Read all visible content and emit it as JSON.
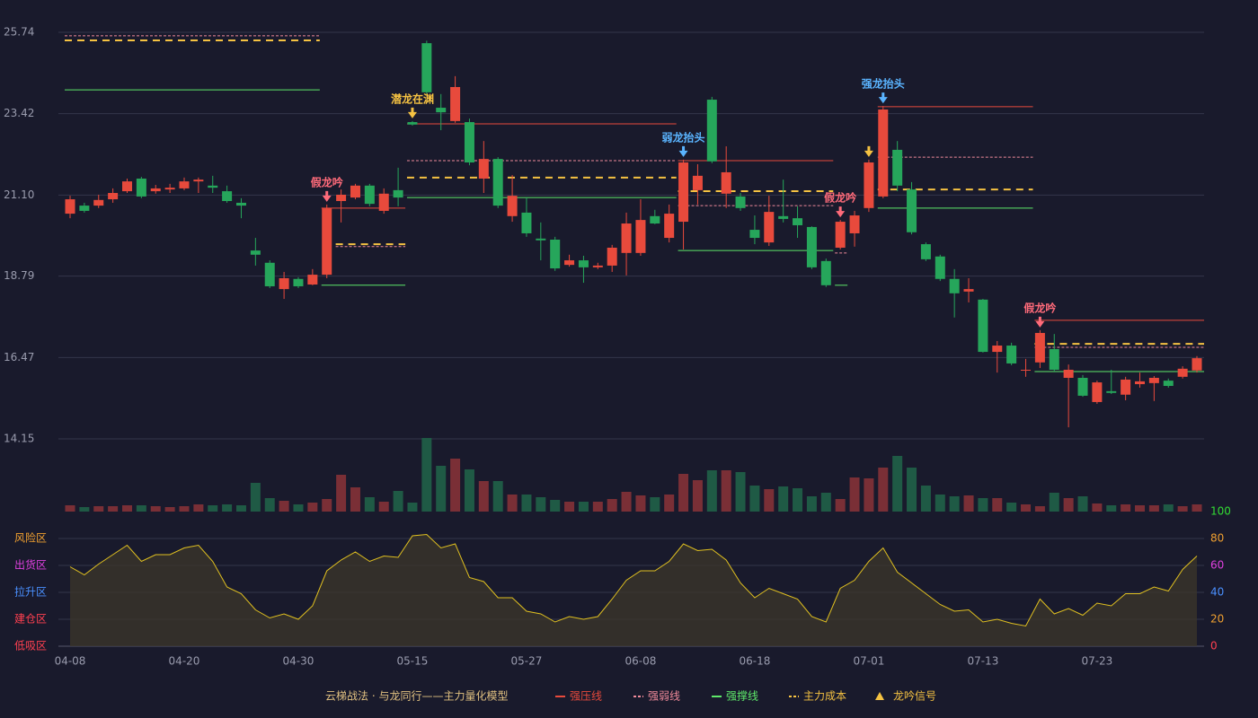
{
  "chart_data": {
    "type": "candlestick",
    "categories": [
      "04-08",
      null,
      null,
      null,
      null,
      null,
      null,
      null,
      "04-20",
      null,
      null,
      null,
      null,
      null,
      null,
      null,
      "04-30",
      null,
      null,
      null,
      null,
      null,
      null,
      null,
      "05-15",
      null,
      null,
      null,
      null,
      null,
      null,
      null,
      "05-27",
      null,
      null,
      null,
      null,
      null,
      null,
      null,
      "06-08",
      null,
      null,
      null,
      null,
      null,
      null,
      null,
      "06-18",
      null,
      null,
      null,
      null,
      null,
      null,
      null,
      "07-01",
      null,
      null,
      null,
      null,
      null,
      null,
      null,
      "07-13",
      null,
      null,
      null,
      null,
      null,
      null,
      null,
      "07-23",
      null,
      null,
      null,
      null,
      null,
      null,
      null
    ],
    "open": [
      20.57,
      20.8,
      20.8,
      20.98,
      21.21,
      21.57,
      21.21,
      21.26,
      21.29,
      21.49,
      21.37,
      21.21,
      20.88,
      19.52,
      19.17,
      18.42,
      18.71,
      18.55,
      18.83,
      20.93,
      21.03,
      21.37,
      20.65,
      21.24,
      23.18,
      25.43,
      23.59,
      23.21,
      23.18,
      21.57,
      22.13,
      20.5,
      20.6,
      19.86,
      19.83,
      19.11,
      19.24,
      19.04,
      19.09,
      19.45,
      19.45,
      20.5,
      19.88,
      20.34,
      21.24,
      23.82,
      21.14,
      21.06,
      20.11,
      19.75,
      20.5,
      20.44,
      20.19,
      19.22,
      19.6,
      20.01,
      20.73,
      21.06,
      22.39,
      21.26,
      19.7,
      19.35,
      18.71,
      18.35,
      18.12,
      16.63,
      16.81,
      16.1,
      16.33,
      16.71,
      15.89,
      15.89,
      15.2,
      15.51,
      15.41,
      15.71,
      15.74,
      15.81,
      15.92,
      16.1
    ],
    "high": [
      21.08,
      20.88,
      21.11,
      21.29,
      21.57,
      21.62,
      21.39,
      21.42,
      21.6,
      21.6,
      21.65,
      21.37,
      21.01,
      19.88,
      19.24,
      18.91,
      18.76,
      18.99,
      20.83,
      21.26,
      21.42,
      21.42,
      21.29,
      21.88,
      23.21,
      25.5,
      23.98,
      24.49,
      23.28,
      22.64,
      22.18,
      21.67,
      21.03,
      20.32,
      19.91,
      19.4,
      19.37,
      19.17,
      19.68,
      20.6,
      20.98,
      20.68,
      20.83,
      22.11,
      21.98,
      23.9,
      22.49,
      21.16,
      20.52,
      21.08,
      21.54,
      20.78,
      20.21,
      19.29,
      20.39,
      20.65,
      22.11,
      23.64,
      22.64,
      21.47,
      19.75,
      19.4,
      18.99,
      18.73,
      18.14,
      16.94,
      16.89,
      16.43,
      17.25,
      17.14,
      16.27,
      15.97,
      15.81,
      16.12,
      15.92,
      16.04,
      15.94,
      15.87,
      16.22,
      16.51
    ],
    "low": [
      20.44,
      20.6,
      20.73,
      20.88,
      21.16,
      21.01,
      21.14,
      21.16,
      21.24,
      21.16,
      21.16,
      20.88,
      20.44,
      19.09,
      18.45,
      18.14,
      18.45,
      18.53,
      18.73,
      20.32,
      20.98,
      20.78,
      20.57,
      20.78,
      23.08,
      23.98,
      22.95,
      23.16,
      21.95,
      21.16,
      20.73,
      20.34,
      19.91,
      19.24,
      18.94,
      19.06,
      18.6,
      18.99,
      18.91,
      18.81,
      19.37,
      20.27,
      19.75,
      19.55,
      20.83,
      22.01,
      20.73,
      20.65,
      19.7,
      19.65,
      20.32,
      19.88,
      18.99,
      18.48,
      19.55,
      19.63,
      20.62,
      21.01,
      21.21,
      19.98,
      19.22,
      18.65,
      17.61,
      18.04,
      16.61,
      16.04,
      16.25,
      15.92,
      16.17,
      16.07,
      14.48,
      15.35,
      15.15,
      15.43,
      15.25,
      15.61,
      15.23,
      15.61,
      15.87,
      16.04
    ],
    "close": [
      20.98,
      20.65,
      20.96,
      21.16,
      21.49,
      21.06,
      21.29,
      21.31,
      21.49,
      21.54,
      21.31,
      20.93,
      20.8,
      19.4,
      18.5,
      18.73,
      18.5,
      18.83,
      20.73,
      21.11,
      21.37,
      20.85,
      21.14,
      21.03,
      23.11,
      24.03,
      23.46,
      24.18,
      22.03,
      22.13,
      20.8,
      21.08,
      20.01,
      19.81,
      19.01,
      19.24,
      19.04,
      19.09,
      19.6,
      20.29,
      20.39,
      20.29,
      20.57,
      22.03,
      21.65,
      22.06,
      21.75,
      20.73,
      19.88,
      20.62,
      20.42,
      20.24,
      19.04,
      18.53,
      20.34,
      20.52,
      22.03,
      23.54,
      21.37,
      20.04,
      19.27,
      18.71,
      18.3,
      18.42,
      16.63,
      16.81,
      16.3,
      16.12,
      17.17,
      16.12,
      16.12,
      15.38,
      15.76,
      15.46,
      15.84,
      15.79,
      15.89,
      15.66,
      16.15,
      16.45
    ],
    "up_color": "#e84a3c",
    "down_color": "#26a65b",
    "volume_up_color": "#7a2f36",
    "volume_down_color": "#1f5a45",
    "volume": [
      7,
      5,
      6,
      6,
      7,
      7,
      6,
      5,
      6,
      8,
      7,
      8,
      7,
      32,
      15,
      12,
      8,
      10,
      14,
      41,
      27,
      16,
      11,
      23,
      10,
      82,
      51,
      59,
      47,
      34,
      34,
      19,
      19,
      16,
      13,
      11,
      11,
      11,
      14,
      22,
      18,
      16,
      19,
      42,
      35,
      46,
      46,
      44,
      29,
      25,
      28,
      26,
      17,
      21,
      14,
      38,
      37,
      49,
      62,
      49,
      29,
      19,
      17,
      18,
      15,
      15,
      10,
      8,
      6,
      21,
      15,
      17,
      9,
      7,
      8,
      7,
      7,
      8,
      6,
      8
    ],
    "ylim": [
      14.15,
      25.74
    ],
    "yticks": [
      14.15,
      16.47,
      18.79,
      {
        "value": 21.1,
        "label": "21.10"
      },
      23.42,
      25.74
    ],
    "grid": true,
    "overlays": [
      {
        "name": "强压线",
        "color": "#e84a3c",
        "dash": "none",
        "width": 1,
        "segments": [
          {
            "from": 18,
            "to": 23,
            "value": 20.73
          },
          {
            "from": 24,
            "to": 42,
            "value": 23.13
          },
          {
            "from": 43,
            "to": 53,
            "value": 22.08
          },
          {
            "from": 57,
            "to": 67,
            "value": 23.62
          },
          {
            "from": 68,
            "to": 79,
            "value": 17.53
          }
        ]
      },
      {
        "name": "强弱线",
        "color": "#f08a9a",
        "dash": "3,2",
        "width": 1,
        "segments": [
          {
            "from": 0,
            "to": 17,
            "value": 25.64
          },
          {
            "from": 19,
            "to": 23,
            "value": 19.63
          },
          {
            "from": 24,
            "to": 42,
            "value": 22.08
          },
          {
            "from": 43,
            "to": 53,
            "value": 20.8
          },
          {
            "from": 54,
            "to": 54,
            "value": 19.45
          },
          {
            "from": 57,
            "to": 67,
            "value": 22.18
          },
          {
            "from": 68,
            "to": 79,
            "value": 16.76
          }
        ]
      },
      {
        "name": "强撑线",
        "color": "#5ee86a",
        "dash": "none",
        "width": 1,
        "segments": [
          {
            "from": 0,
            "to": 17,
            "value": 24.1
          },
          {
            "from": 18,
            "to": 23,
            "value": 18.53
          },
          {
            "from": 24,
            "to": 42,
            "value": 21.03
          },
          {
            "from": 43,
            "to": 53,
            "value": 19.52
          },
          {
            "from": 54,
            "to": 54,
            "value": 18.53
          },
          {
            "from": 57,
            "to": 67,
            "value": 20.73
          },
          {
            "from": 68,
            "to": 79,
            "value": 16.07
          }
        ]
      },
      {
        "name": "主力成本",
        "color": "#f5c242",
        "dash": "8,6",
        "width": 2,
        "segments": [
          {
            "from": 0,
            "to": 17,
            "value": 25.51
          },
          {
            "from": 19,
            "to": 23,
            "value": 19.7
          },
          {
            "from": 24,
            "to": 42,
            "value": 21.6
          },
          {
            "from": 43,
            "to": 53,
            "value": 21.21
          },
          {
            "from": 57,
            "to": 67,
            "value": 21.26
          },
          {
            "from": 68,
            "to": 79,
            "value": 16.86
          }
        ]
      }
    ],
    "signals": [
      {
        "index": 18,
        "label": "假龙吟",
        "color": "#ff6b7a"
      },
      {
        "index": 24,
        "label": "潜龙在渊",
        "color": "#f5c242"
      },
      {
        "index": 43,
        "label": "弱龙抬头",
        "color": "#5ab4ff"
      },
      {
        "index": 54,
        "label": "假龙吟",
        "color": "#ff6b7a"
      },
      {
        "index": 56,
        "color": "#f5c242"
      },
      {
        "index": 57,
        "label": "强龙抬头",
        "color": "#5ab4ff"
      },
      {
        "index": 68,
        "label": "假龙吟",
        "color": "#ff6b7a"
      }
    ],
    "indicator": {
      "values": [
        59,
        53,
        61,
        68,
        75,
        63,
        68,
        68,
        73,
        75,
        63,
        44,
        39,
        27,
        21,
        24,
        20,
        30,
        56,
        64,
        70,
        63,
        67,
        66,
        82,
        83,
        73,
        76,
        51,
        48,
        36,
        36,
        26,
        24,
        18,
        22,
        20,
        22,
        35,
        49,
        56,
        56,
        63,
        76,
        71,
        72,
        64,
        47,
        36,
        43,
        39,
        35,
        22,
        18,
        43,
        49,
        63,
        73,
        55,
        47,
        39,
        31,
        26,
        27,
        18,
        20,
        17,
        15,
        35,
        24,
        28,
        23,
        32,
        30,
        39,
        39,
        44,
        41,
        57,
        67
      ],
      "color": "#e0c020",
      "fill": "#39352a",
      "ylim": [
        0,
        100
      ],
      "yticks": [
        0,
        20,
        40,
        60,
        80,
        100
      ],
      "ytick_colors": [
        "#ff4050",
        "#f0a030",
        "#4a90ff",
        "#e040e0",
        "#f0a030",
        "#33dd33"
      ],
      "zones": [
        {
          "value": 80,
          "label": "风险区",
          "color": "#f0a030"
        },
        {
          "value": 60,
          "label": "出货区",
          "color": "#e040e0"
        },
        {
          "value": 40,
          "label": "拉升区",
          "color": "#4a90ff"
        },
        {
          "value": 20,
          "label": "建仓区",
          "color": "#ff4050"
        },
        {
          "value": 0,
          "label": "低吸区",
          "color": "#ff4050"
        }
      ]
    },
    "legend_title": "云梯战法 · 与龙同行——主力量化模型",
    "legend_title_color": "#e0c080",
    "signal_legend": {
      "label": "龙吟信号",
      "color": "#f5c242"
    }
  }
}
